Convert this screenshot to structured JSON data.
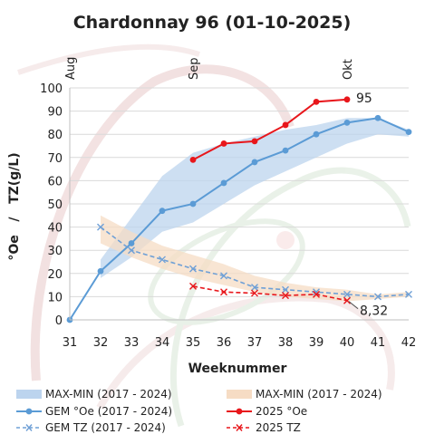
{
  "chart_data": {
    "type": "line",
    "title": "Chardonnay 96 (01-10-2025)",
    "xlabel": "Weeknummer",
    "ylabel": "°Oe   /   TZ(g/L)",
    "x": [
      31,
      32,
      33,
      34,
      35,
      36,
      37,
      38,
      39,
      40,
      41,
      42
    ],
    "xlim": [
      31,
      42
    ],
    "ylim": [
      0,
      100
    ],
    "yticks": [
      0,
      10,
      20,
      30,
      40,
      50,
      60,
      70,
      80,
      90,
      100
    ],
    "month_markers": [
      {
        "label": "Aug",
        "x": 31
      },
      {
        "label": "Sep",
        "x": 35
      },
      {
        "label": "Okt",
        "x": 40
      }
    ],
    "grid": true,
    "legend_position": "bottom",
    "series": [
      {
        "name": "MAX-MIN (2017 - 2024)",
        "kind": "band",
        "color": "#bcd4ee",
        "x": [
          32,
          33,
          34,
          35,
          36,
          37,
          38,
          39,
          40,
          41,
          42
        ],
        "low": [
          18,
          27,
          38,
          42,
          50,
          58,
          64,
          70,
          76,
          80,
          79
        ],
        "high": [
          26,
          44,
          62,
          72,
          76,
          79,
          82,
          84,
          87,
          87,
          82
        ]
      },
      {
        "name": "MAX-MIN (2017 - 2024)",
        "kind": "band",
        "color": "#f6dcc4",
        "x": [
          32,
          33,
          34,
          35,
          36,
          37,
          38,
          39,
          40,
          41,
          42
        ],
        "low": [
          33,
          27,
          22,
          18,
          15,
          12,
          10,
          9,
          8,
          9,
          10
        ],
        "high": [
          45,
          38,
          32,
          28,
          24,
          19,
          16,
          14,
          13,
          11,
          12
        ]
      },
      {
        "name": "GEM °Oe (2017 - 2024)",
        "kind": "line",
        "color": "#5b9bd5",
        "dash": false,
        "x": [
          31,
          32,
          33,
          34,
          35,
          36,
          37,
          38,
          39,
          40,
          41,
          42
        ],
        "values": [
          0,
          21,
          33,
          47,
          50,
          59,
          68,
          73,
          80,
          85,
          87,
          81
        ]
      },
      {
        "name": "2025 °Oe",
        "kind": "line",
        "color": "#e8161b",
        "dash": false,
        "x": [
          35,
          36,
          37,
          38,
          39,
          40
        ],
        "values": [
          69,
          76,
          77,
          84,
          94,
          95
        ]
      },
      {
        "name": "GEM TZ (2017 - 2024)",
        "kind": "line",
        "color": "#6fa0d6",
        "dash": true,
        "marker": "x",
        "x": [
          32,
          33,
          34,
          35,
          36,
          37,
          38,
          39,
          40,
          41,
          42
        ],
        "values": [
          40,
          30,
          26,
          22,
          19,
          14,
          13,
          12,
          11,
          10,
          11
        ]
      },
      {
        "name": "2025 TZ",
        "kind": "line",
        "color": "#e8161b",
        "dash": true,
        "marker": "x",
        "x": [
          35,
          36,
          37,
          38,
          39,
          40
        ],
        "values": [
          14.5,
          12,
          11.5,
          10.5,
          11,
          8.32
        ]
      }
    ],
    "annotations": [
      {
        "text": "95",
        "x": 40,
        "y": 95
      },
      {
        "text": "8,32",
        "x": 40,
        "y": 8.32
      }
    ],
    "legend": [
      {
        "label": "MAX-MIN (2017 - 2024)",
        "symbol": "band",
        "color": "#bcd4ee"
      },
      {
        "label": "MAX-MIN (2017 - 2024)",
        "symbol": "band",
        "color": "#f6dcc4"
      },
      {
        "label": "GEM °Oe (2017 - 2024)",
        "symbol": "line-dot",
        "color": "#5b9bd5"
      },
      {
        "label": "2025 °Oe",
        "symbol": "line-dot",
        "color": "#e8161b"
      },
      {
        "label": "GEM TZ (2017 - 2024)",
        "symbol": "dash-x",
        "color": "#6fa0d6"
      },
      {
        "label": "2025 TZ",
        "symbol": "dash-x",
        "color": "#e8161b"
      }
    ]
  }
}
